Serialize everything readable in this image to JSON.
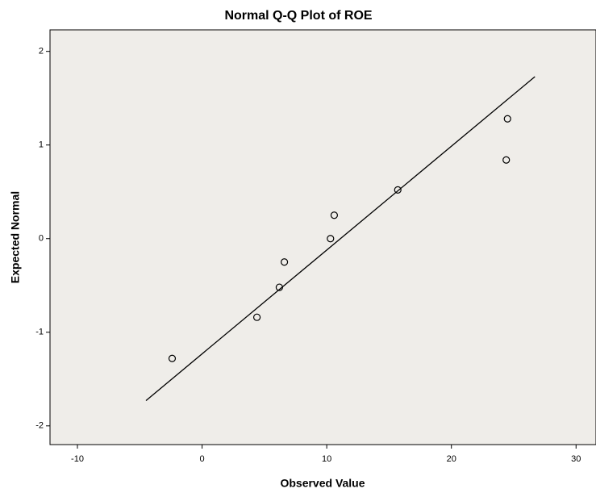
{
  "chart_data": {
    "type": "scatter",
    "title": "Normal Q-Q Plot of ROE",
    "x_label": "Observed Value",
    "y_label": "Expected Normal",
    "x": [
      -2.4,
      4.4,
      6.2,
      6.6,
      10.3,
      10.6,
      15.7,
      24.4,
      24.5
    ],
    "values": [
      -1.28,
      -0.84,
      -0.52,
      -0.25,
      0,
      0.25,
      0.52,
      0.84,
      1.28
    ],
    "marker_color": "#000000",
    "reference_line": {
      "x": [
        -4.5,
        26.7
      ],
      "y": [
        -1.73,
        1.73
      ],
      "color": "#000000"
    },
    "xlim": [
      -12.2,
      31.6
    ],
    "xticks": [
      -10,
      0,
      10,
      20,
      30
    ],
    "ylim": [
      -2.2,
      2.23
    ],
    "yticks": [
      -2,
      -1,
      0,
      1,
      2
    ],
    "plot_background": "#efede9",
    "grid": false
  }
}
